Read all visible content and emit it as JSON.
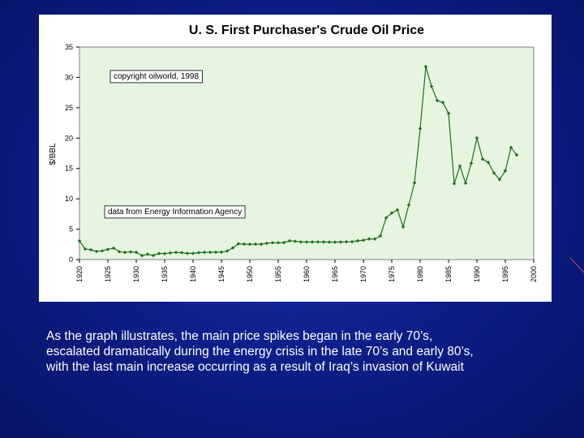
{
  "chart_data": {
    "type": "line",
    "title": "U. S. First Purchaser's Crude Oil Price",
    "xlabel": "",
    "ylabel": "$/BBL",
    "xlim": [
      1920,
      2000
    ],
    "ylim": [
      0,
      35
    ],
    "yticks": [
      0,
      5,
      10,
      15,
      20,
      25,
      30,
      35
    ],
    "xticks": [
      1920,
      1925,
      1930,
      1935,
      1940,
      1945,
      1950,
      1955,
      1960,
      1965,
      1970,
      1975,
      1980,
      1985,
      1990,
      1995,
      2000
    ],
    "grid": false,
    "series_color": "#1e6e1e",
    "plot_bg": "#e6f5e0",
    "annotations": [
      {
        "text": "copyright oilworld, 1998",
        "at": [
          1926,
          29.8
        ]
      },
      {
        "text": "data from Energy Information Agency",
        "at": [
          1925,
          7.5
        ]
      }
    ],
    "series": [
      {
        "name": "Crude Oil Price",
        "x": [
          1920,
          1921,
          1922,
          1923,
          1924,
          1925,
          1926,
          1927,
          1928,
          1929,
          1930,
          1931,
          1932,
          1933,
          1934,
          1935,
          1936,
          1937,
          1938,
          1939,
          1940,
          1941,
          1942,
          1943,
          1944,
          1945,
          1946,
          1947,
          1948,
          1949,
          1950,
          1951,
          1952,
          1953,
          1954,
          1955,
          1956,
          1957,
          1958,
          1959,
          1960,
          1961,
          1962,
          1963,
          1964,
          1965,
          1966,
          1967,
          1968,
          1969,
          1970,
          1971,
          1972,
          1973,
          1974,
          1975,
          1976,
          1977,
          1978,
          1979,
          1980,
          1981,
          1982,
          1983,
          1984,
          1985,
          1986,
          1987,
          1988,
          1989,
          1990,
          1991,
          1992,
          1993,
          1994,
          1995,
          1996,
          1997
        ],
        "values": [
          3.07,
          1.73,
          1.61,
          1.34,
          1.43,
          1.68,
          1.88,
          1.3,
          1.17,
          1.27,
          1.19,
          0.65,
          0.87,
          0.67,
          1.0,
          0.97,
          1.09,
          1.18,
          1.13,
          1.02,
          1.02,
          1.14,
          1.19,
          1.2,
          1.21,
          1.22,
          1.41,
          1.93,
          2.6,
          2.54,
          2.51,
          2.53,
          2.53,
          2.68,
          2.78,
          2.77,
          2.79,
          3.09,
          3.01,
          2.9,
          2.88,
          2.89,
          2.9,
          2.89,
          2.88,
          2.86,
          2.88,
          2.92,
          2.94,
          3.09,
          3.18,
          3.39,
          3.39,
          3.89,
          6.87,
          7.67,
          8.19,
          5.37,
          9.0,
          12.64,
          21.59,
          31.77,
          28.52,
          26.19,
          25.88,
          24.09,
          12.51,
          15.4,
          12.58,
          15.86,
          20.03,
          16.54,
          15.99,
          14.25,
          13.19,
          14.62,
          18.46,
          17.23
        ]
      }
    ]
  },
  "caption": {
    "line1": "As the graph illustrates, the main price spikes began in the early 70’s,",
    "line2": "escalated dramatically during the energy crisis in the late 70’s and early 80’s,",
    "line3": "with the last main increase occurring as a result of Iraq’s invasion of Kuwait"
  }
}
